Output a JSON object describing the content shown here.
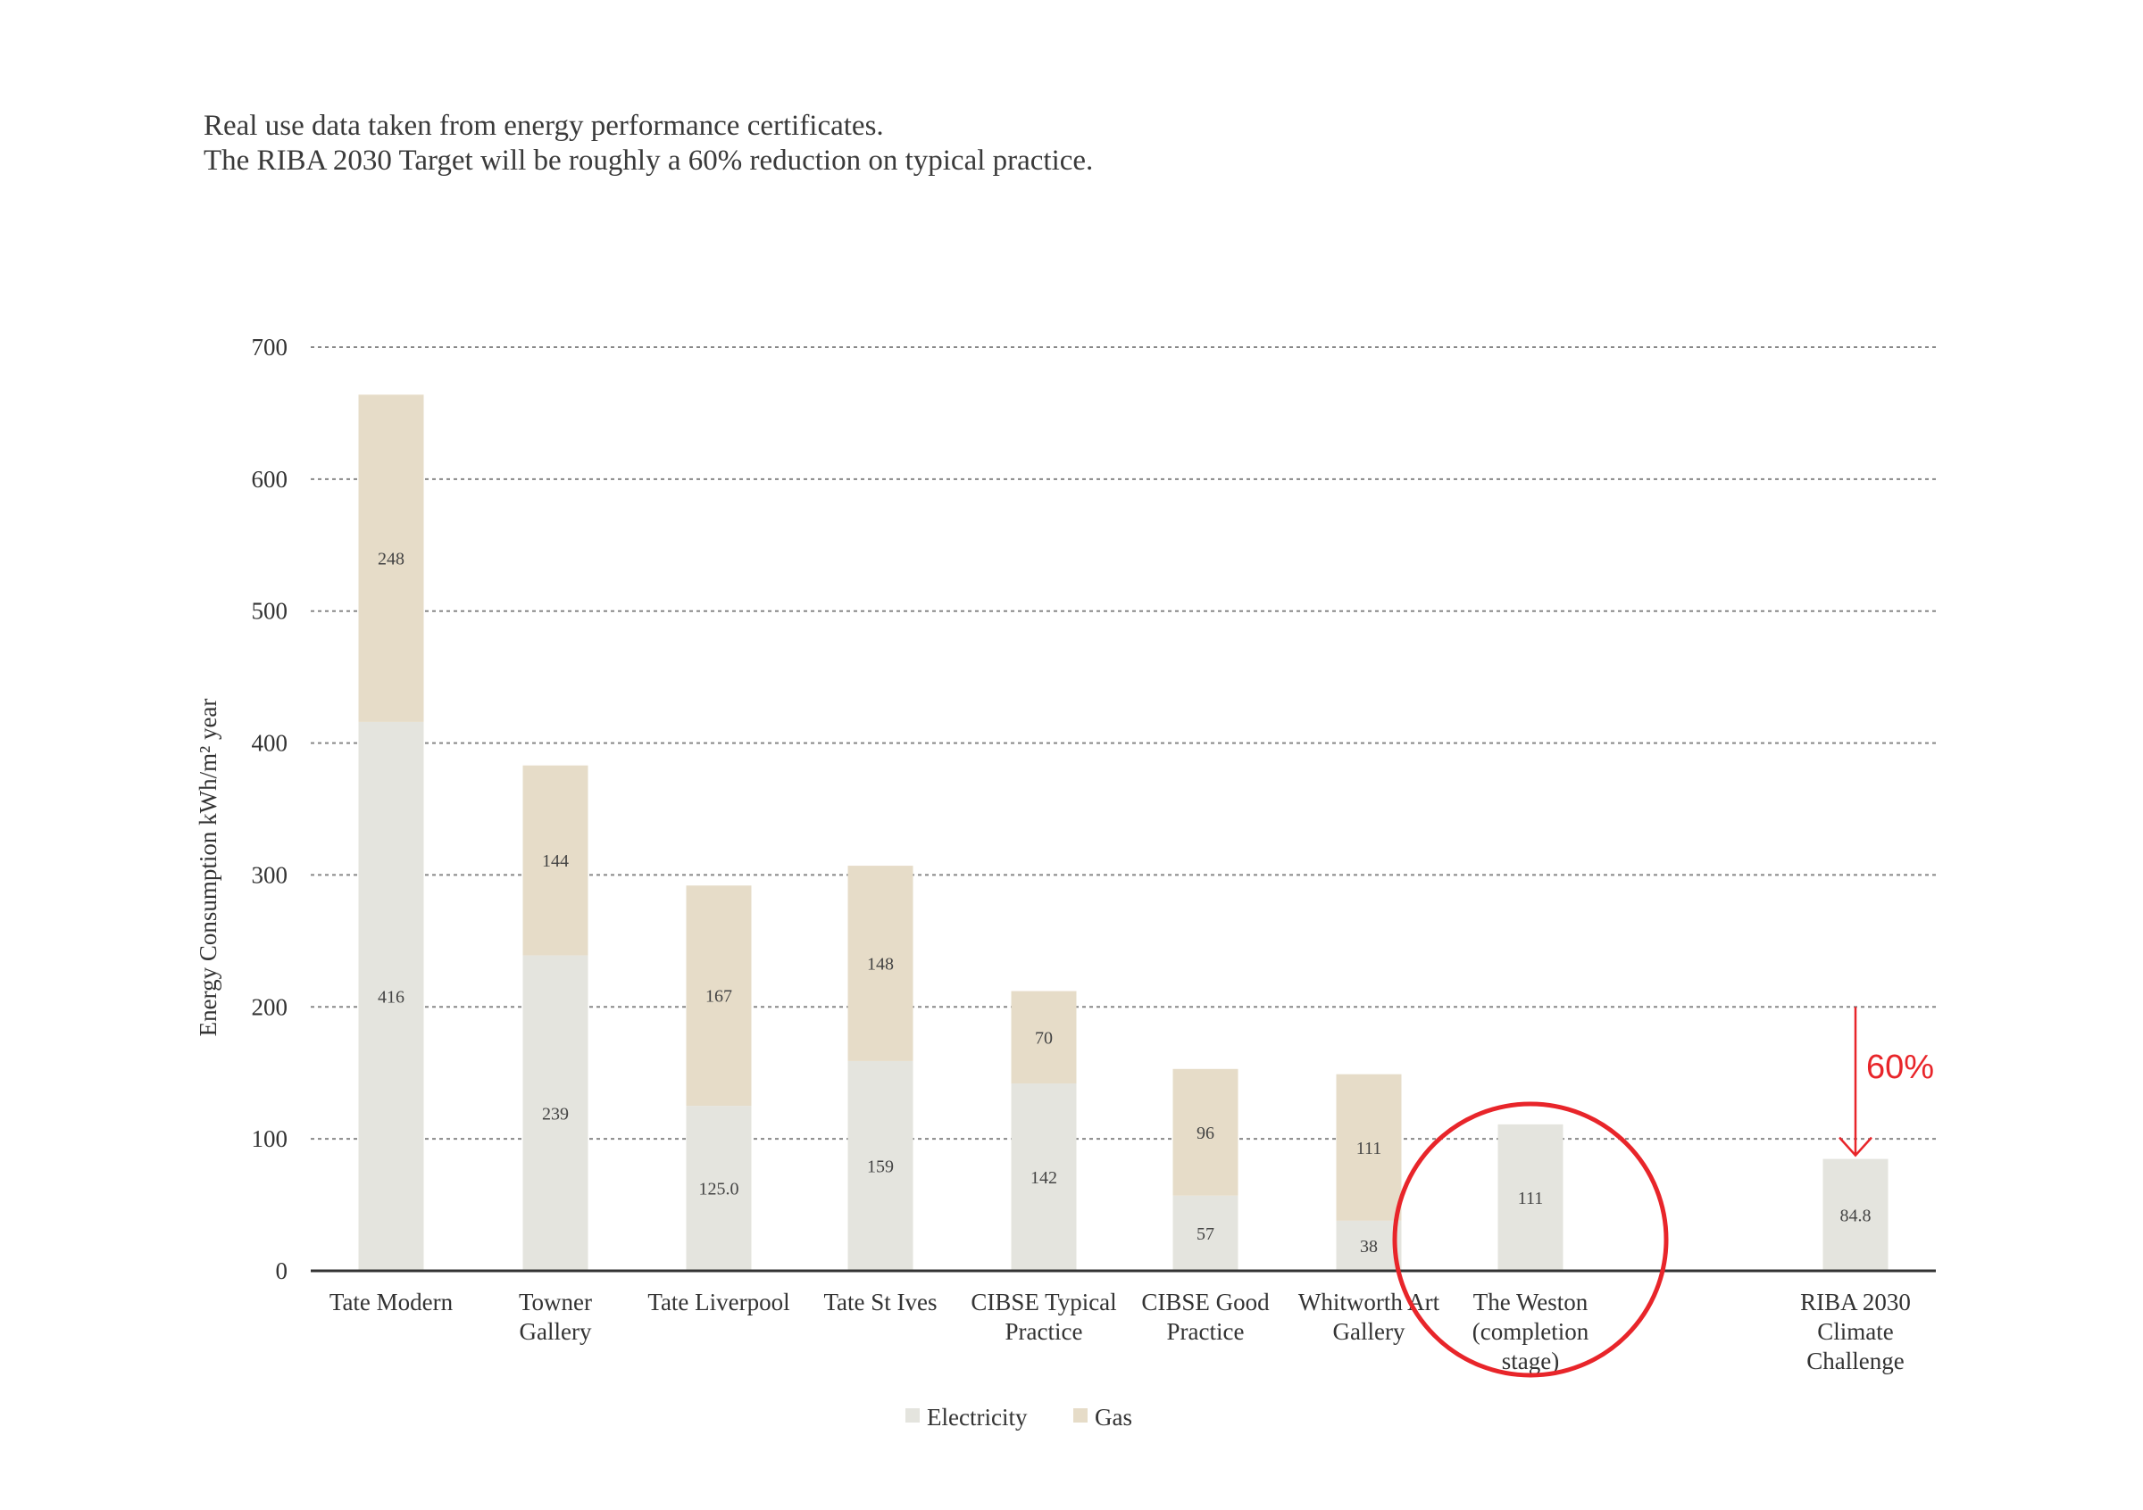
{
  "intro": {
    "line1": "Real use data taken from energy performance certificates.",
    "line2": "The RIBA 2030 Target will be roughly a 60% reduction on typical practice."
  },
  "chart_data": {
    "type": "bar",
    "stacked": true,
    "ylabel": "Energy Consumption kWh/m² year",
    "ylim": [
      0,
      700
    ],
    "yticks": [
      0,
      100,
      200,
      300,
      400,
      500,
      600,
      700
    ],
    "grid": true,
    "categories": [
      [
        "Tate Modern"
      ],
      [
        "Towner",
        "Gallery"
      ],
      [
        "Tate Liverpool"
      ],
      [
        "Tate St Ives"
      ],
      [
        "CIBSE Typical",
        "Practice"
      ],
      [
        "CIBSE Good",
        "Practice"
      ],
      [
        "Whitworth Art",
        "Gallery"
      ],
      [
        "The Weston",
        "(completion",
        "stage)"
      ],
      [
        "RIBA 2030",
        "Climate",
        "Challenge"
      ]
    ],
    "series": [
      {
        "name": "Electricity",
        "color": "#e4e4de",
        "values": [
          416,
          239,
          125.0,
          159,
          142,
          57,
          38,
          111,
          84.8
        ],
        "labels": [
          "416",
          "239",
          "125.0",
          "159",
          "142",
          "57",
          "38",
          "111",
          "84.8"
        ]
      },
      {
        "name": "Gas",
        "color": "#e6dcc8",
        "values": [
          248,
          144,
          167,
          148,
          70,
          96,
          111,
          0,
          0
        ],
        "labels": [
          "248",
          "144",
          "167",
          "148",
          "70",
          "96",
          "111",
          "",
          ""
        ]
      }
    ],
    "legend": {
      "placement": "bottom",
      "entries": [
        "Electricity",
        "Gas"
      ]
    },
    "annotations": {
      "reduction_label": "60%",
      "reduction_arrow": {
        "from": 200,
        "to": 84.8,
        "category_index": 8
      },
      "highlight_category_index": 7,
      "color": "#e8252a"
    }
  }
}
